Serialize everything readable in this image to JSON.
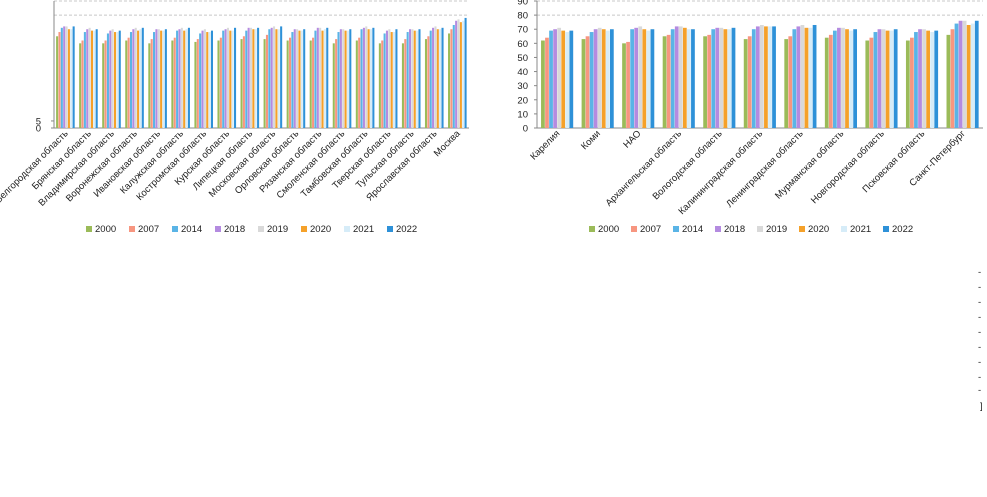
{
  "chart_data": [
    {
      "type": "bar",
      "title": "",
      "xlabel": "",
      "ylabel": "",
      "ylim": [
        0,
        90
      ],
      "y_ticks_visible": [
        "0",
        "5"
      ],
      "grid": "dashed horizontal",
      "legend": "bottom",
      "categories": [
        "Белгородская область",
        "Брянская область",
        "Владимирская область",
        "Воронежская область",
        "Ивановская область",
        "Калужская область",
        "Костромская область",
        "Курская область",
        "Липецкая область",
        "Московская область",
        "Орловская область",
        "Рязанская область",
        "Смоленская область",
        "Тамбовская область",
        "Тверская область",
        "Тульская область",
        "Ярославская область",
        "Москва"
      ],
      "series": [
        {
          "name": "2000",
          "color": "#9bbb59",
          "values": [
            65,
            60,
            60,
            62,
            60,
            62,
            61,
            62,
            63,
            63,
            62,
            62,
            60,
            62,
            60,
            60,
            63,
            67
          ]
        },
        {
          "name": "2007",
          "color": "#f79680",
          "values": [
            68,
            62,
            62,
            64,
            63,
            64,
            63,
            64,
            65,
            66,
            64,
            64,
            63,
            64,
            62,
            63,
            65,
            70
          ]
        },
        {
          "name": "2014",
          "color": "#5ab4e6",
          "values": [
            71,
            68,
            67,
            68,
            68,
            69,
            67,
            69,
            69,
            70,
            68,
            69,
            68,
            70,
            67,
            68,
            69,
            73
          ]
        },
        {
          "name": "2018",
          "color": "#b48be0",
          "values": [
            72,
            70,
            69,
            70,
            70,
            70,
            69,
            70,
            71,
            71,
            70,
            71,
            70,
            71,
            69,
            70,
            71,
            76
          ]
        },
        {
          "name": "2019",
          "color": "#d9d9d9",
          "values": [
            72,
            71,
            70,
            71,
            70,
            71,
            70,
            71,
            71,
            72,
            70,
            71,
            70,
            72,
            70,
            70,
            72,
            77
          ]
        },
        {
          "name": "2020",
          "color": "#f5a12a",
          "values": [
            70,
            69,
            68,
            69,
            69,
            69,
            68,
            69,
            70,
            70,
            69,
            69,
            69,
            70,
            68,
            69,
            70,
            75
          ]
        },
        {
          "name": "2021",
          "color": "#d6ecf8",
          "values": [
            70,
            69,
            68,
            70,
            69,
            70,
            68,
            69,
            70,
            70,
            69,
            70,
            69,
            70,
            68,
            69,
            70,
            76
          ]
        },
        {
          "name": "2022",
          "color": "#2e91d8",
          "values": [
            72,
            70,
            69,
            71,
            70,
            71,
            69,
            71,
            71,
            72,
            70,
            71,
            70,
            71,
            70,
            70,
            71,
            78
          ]
        }
      ]
    },
    {
      "type": "bar",
      "title": "",
      "xlabel": "",
      "ylabel": "",
      "ylim": [
        0,
        90
      ],
      "y_ticks": [
        0,
        10,
        20,
        30,
        40,
        50,
        60,
        70,
        80,
        90
      ],
      "grid": "dashed horizontal",
      "legend": "bottom",
      "categories": [
        "Карелия",
        "Коми",
        "НАО",
        "Архангельская область",
        "Вологодская область",
        "Калининградская область",
        "Ленинградская область",
        "Мурманская область",
        "Новгородская область",
        "Псковская область",
        "Санкт-Петербург"
      ],
      "series": [
        {
          "name": "2000",
          "color": "#9bbb59",
          "values": [
            62,
            63,
            60,
            65,
            65,
            63,
            63,
            64,
            62,
            62,
            66
          ]
        },
        {
          "name": "2007",
          "color": "#f79680",
          "values": [
            64,
            65,
            61,
            66,
            66,
            65,
            65,
            66,
            64,
            64,
            70
          ]
        },
        {
          "name": "2014",
          "color": "#5ab4e6",
          "values": [
            69,
            68,
            70,
            70,
            70,
            70,
            70,
            69,
            68,
            68,
            74
          ]
        },
        {
          "name": "2018",
          "color": "#b48be0",
          "values": [
            70,
            70,
            71,
            72,
            71,
            72,
            72,
            71,
            70,
            70,
            76
          ]
        },
        {
          "name": "2019",
          "color": "#d9d9d9",
          "values": [
            71,
            71,
            72,
            72,
            71,
            73,
            73,
            71,
            70,
            70,
            76
          ]
        },
        {
          "name": "2020",
          "color": "#f5a12a",
          "values": [
            69,
            70,
            70,
            71,
            70,
            72,
            71,
            70,
            69,
            69,
            73
          ]
        },
        {
          "name": "2021",
          "color": "#d6ecf8",
          "values": [
            68,
            69,
            69,
            70,
            70,
            72,
            71,
            69,
            69,
            68,
            74
          ]
        },
        {
          "name": "2022",
          "color": "#2e91d8",
          "values": [
            69,
            70,
            70,
            70,
            71,
            72,
            73,
            70,
            70,
            69,
            76
          ]
        }
      ]
    }
  ],
  "fragments": {
    "right_edge_marks": [
      "-",
      "-",
      "-",
      "-",
      "-",
      "-",
      "-",
      "-",
      "-"
    ],
    "corner_bracket": "]"
  }
}
